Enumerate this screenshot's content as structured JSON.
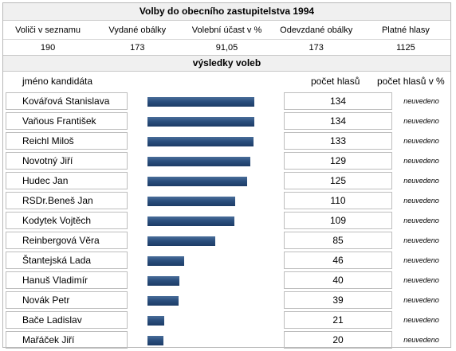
{
  "title": "Volby do obecního zastupitelstva 1994",
  "stats": {
    "headers": [
      "Voliči v seznamu",
      "Vydané obálky",
      "Volební účast v %",
      "Odevzdané obálky",
      "Platné hlasy"
    ],
    "values": [
      "190",
      "173",
      "91,05",
      "173",
      "1125"
    ]
  },
  "results_title": "výsledky voleb",
  "columns": {
    "name": "jméno kandidáta",
    "votes": "počet hlasů",
    "pct": "počet hlasů v %"
  },
  "chart_data": {
    "type": "bar",
    "categories": [
      "Kovářová Stanislava",
      "Vaňous František",
      "Reichl Miloš",
      "Novotný Jiří",
      "Hudec Jan",
      "RSDr.Beneš Jan",
      "Kodytek Vojtěch",
      "Reinbergová Věra",
      "Štantejská Lada",
      "Hanuš Vladimír",
      "Novák Petr",
      "Bače Ladislav",
      "Mařáček Jiří"
    ],
    "values": [
      134,
      134,
      133,
      129,
      125,
      110,
      109,
      85,
      46,
      40,
      39,
      21,
      20
    ],
    "pct_labels": [
      "neuvedeno",
      "neuvedeno",
      "neuvedeno",
      "neuvedeno",
      "neuvedeno",
      "neuvedeno",
      "neuvedeno",
      "neuvedeno",
      "neuvedeno",
      "neuvedeno",
      "neuvedeno",
      "neuvedeno",
      "neuvedeno"
    ],
    "bar_color": "#2b4f7e"
  }
}
